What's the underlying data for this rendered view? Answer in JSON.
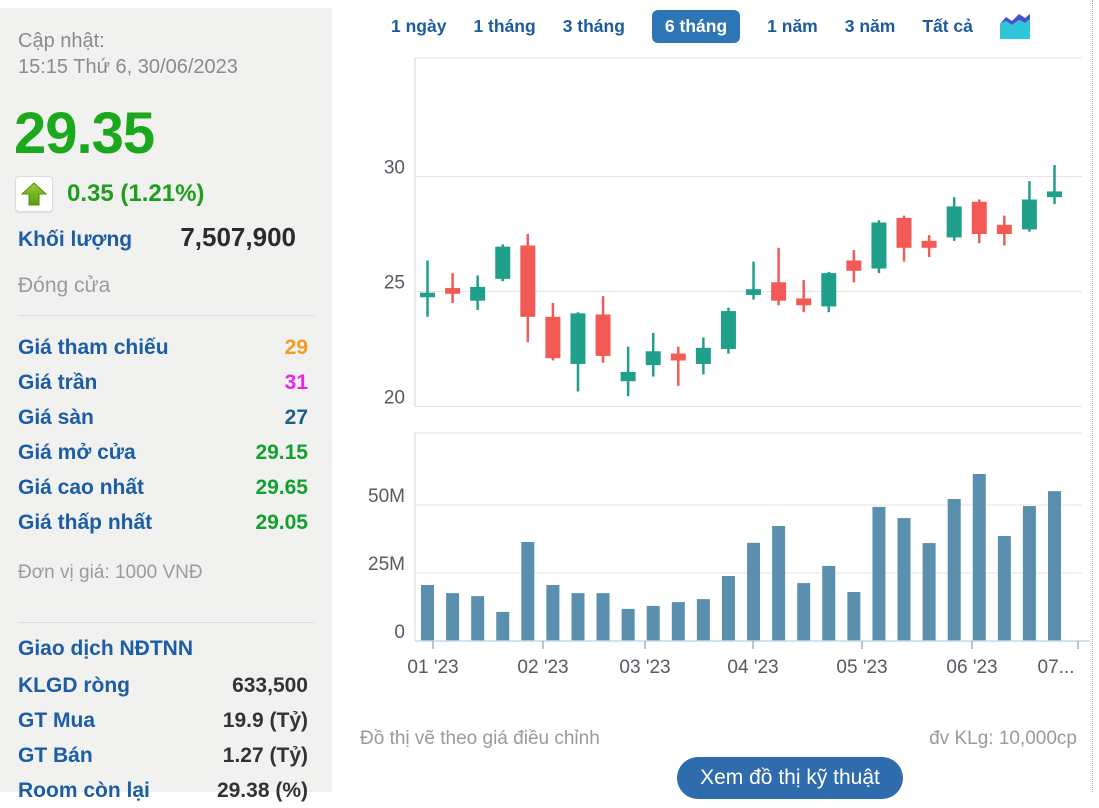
{
  "sidebar": {
    "updated_label": "Cập nhật:",
    "updated_time": "15:15 Thứ 6, 30/06/2023",
    "price": "29.35",
    "change": "0.35 (1.21%)",
    "volume_label": "Khối lượng",
    "volume_value": "7,507,900",
    "session_status": "Đóng cửa",
    "price_rows": [
      {
        "label": "Giá tham chiếu",
        "value": "29",
        "color": "#f39c1f"
      },
      {
        "label": "Giá trần",
        "value": "31",
        "color": "#e826e8"
      },
      {
        "label": "Giá sàn",
        "value": "27",
        "color": "#1a5e8c"
      },
      {
        "label": "Giá mở cửa",
        "value": "29.15",
        "color": "#12a12f"
      },
      {
        "label": "Giá cao nhất",
        "value": "29.65",
        "color": "#12a12f"
      },
      {
        "label": "Giá thấp nhất",
        "value": "29.05",
        "color": "#12a12f"
      }
    ],
    "price_unit_note": "Đơn vị giá: 1000 VNĐ",
    "foreign_header": "Giao dịch NĐTNN",
    "foreign_rows": [
      {
        "label": "KLGD ròng",
        "value": "633,500"
      },
      {
        "label": "GT Mua",
        "value": "19.9 (Tỷ)"
      },
      {
        "label": "GT Bán",
        "value": "1.27 (Tỷ)"
      },
      {
        "label": "Room còn lại",
        "value": "29.38 (%)"
      }
    ]
  },
  "tabs": {
    "items": [
      "1 ngày",
      "1 tháng",
      "3 tháng",
      "6 tháng",
      "1 năm",
      "3 năm",
      "Tất cả"
    ],
    "active": "6 tháng",
    "chart_icon": "area-chart-icon"
  },
  "footer": {
    "left_note": "Đồ thị vẽ theo giá điều chỉnh",
    "right_note": "đv KLg: 10,000cp",
    "button": "Xem đồ thị kỹ thuật"
  },
  "colors": {
    "price_up_green": "#1ca81c",
    "candle_up": "#20a08a",
    "candle_down": "#f25b55",
    "volume_bar": "#5b8fae",
    "accent_blue": "#1c5da4",
    "active_tab_bg": "#2e75b6",
    "button_bg": "#2e6cad",
    "axis_text": "#565b61"
  },
  "chart_data": [
    {
      "type": "candlestick",
      "x_unit": "week",
      "yticks": [
        20,
        25,
        30
      ],
      "ylim": [
        20,
        35
      ],
      "grid": "on",
      "candles": [
        {
          "o": 24.75,
          "h": 26.35,
          "l": 23.9,
          "c": 24.95
        },
        {
          "o": 25.15,
          "h": 25.8,
          "l": 24.5,
          "c": 24.9
        },
        {
          "o": 24.6,
          "h": 25.7,
          "l": 24.2,
          "c": 25.2
        },
        {
          "o": 25.55,
          "h": 27.05,
          "l": 25.45,
          "c": 26.95
        },
        {
          "o": 27.0,
          "h": 27.5,
          "l": 22.8,
          "c": 23.9
        },
        {
          "o": 23.9,
          "h": 24.5,
          "l": 22.0,
          "c": 22.1
        },
        {
          "o": 21.85,
          "h": 24.1,
          "l": 20.65,
          "c": 24.05
        },
        {
          "o": 24.0,
          "h": 24.8,
          "l": 21.9,
          "c": 22.2
        },
        {
          "o": 21.1,
          "h": 22.6,
          "l": 20.45,
          "c": 21.5
        },
        {
          "o": 21.8,
          "h": 23.2,
          "l": 21.3,
          "c": 22.4
        },
        {
          "o": 22.3,
          "h": 22.6,
          "l": 20.9,
          "c": 22.0
        },
        {
          "o": 21.85,
          "h": 23.0,
          "l": 21.4,
          "c": 22.55
        },
        {
          "o": 22.5,
          "h": 24.3,
          "l": 22.3,
          "c": 24.15
        },
        {
          "o": 24.85,
          "h": 26.3,
          "l": 24.65,
          "c": 25.1
        },
        {
          "o": 25.4,
          "h": 26.9,
          "l": 24.4,
          "c": 24.6
        },
        {
          "o": 24.7,
          "h": 25.5,
          "l": 24.1,
          "c": 24.4
        },
        {
          "o": 24.35,
          "h": 25.85,
          "l": 24.1,
          "c": 25.8
        },
        {
          "o": 26.35,
          "h": 26.8,
          "l": 25.4,
          "c": 25.9
        },
        {
          "o": 26.0,
          "h": 28.1,
          "l": 25.8,
          "c": 28.0
        },
        {
          "o": 28.2,
          "h": 28.3,
          "l": 26.3,
          "c": 26.9
        },
        {
          "o": 27.2,
          "h": 27.45,
          "l": 26.5,
          "c": 26.9
        },
        {
          "o": 27.35,
          "h": 29.1,
          "l": 27.2,
          "c": 28.7
        },
        {
          "o": 28.9,
          "h": 29.0,
          "l": 27.1,
          "c": 27.5
        },
        {
          "o": 27.9,
          "h": 28.3,
          "l": 27.0,
          "c": 27.5
        },
        {
          "o": 27.7,
          "h": 29.8,
          "l": 27.6,
          "c": 29.0
        },
        {
          "o": 29.1,
          "h": 30.5,
          "l": 28.8,
          "c": 29.35
        }
      ]
    },
    {
      "type": "bar",
      "ylabel": "volume",
      "yticks": [
        {
          "v": 0,
          "label": "0"
        },
        {
          "v": 25,
          "label": "25M"
        },
        {
          "v": 50,
          "label": "50M"
        }
      ],
      "ylim_millions": [
        0,
        76
      ],
      "x_labels": [
        "01 '23",
        "02 '23",
        "03 '23",
        "04 '23",
        "05 '23",
        "06 '23",
        "07..."
      ],
      "values_millions": [
        20.6,
        17.6,
        16.5,
        10.7,
        36.4,
        20.6,
        17.6,
        17.6,
        11.8,
        12.9,
        14.3,
        15.4,
        23.9,
        36.1,
        42.3,
        21.3,
        27.6,
        18.0,
        49.3,
        45.2,
        36.0,
        52.2,
        61.4,
        38.6,
        49.6,
        55.1
      ]
    }
  ]
}
